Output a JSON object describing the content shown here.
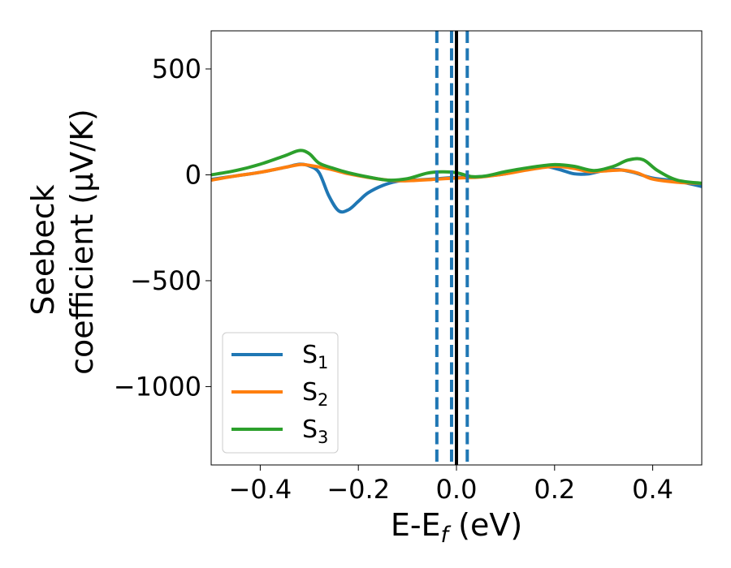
{
  "chart_data": {
    "type": "line",
    "xlabel": "E-E",
    "xlabel_sub": "f",
    "xlabel_unit": " (eV)",
    "ylabel_line1": "Seebeck",
    "ylabel_line2": "coefficient  (μV/K)",
    "xlim": [
      -0.5,
      0.5
    ],
    "ylim": [
      -1370,
      680
    ],
    "xticks": [
      -0.4,
      -0.2,
      0.0,
      0.2,
      0.4
    ],
    "xtick_labels": [
      "−0.4",
      "−0.2",
      "0.0",
      "0.2",
      "0.4"
    ],
    "yticks": [
      500,
      0,
      -500,
      -1000
    ],
    "ytick_labels": [
      "500",
      "0",
      "−500",
      "−1000"
    ],
    "grid": false,
    "legend_position": "lower-left",
    "vlines": [
      {
        "x": 0.0,
        "style": "solid",
        "color": "#000000"
      },
      {
        "x": -0.04,
        "style": "dashed",
        "color": "#1f77b4"
      },
      {
        "x": -0.01,
        "style": "dashed",
        "color": "#1f77b4"
      },
      {
        "x": 0.022,
        "style": "dashed",
        "color": "#1f77b4"
      }
    ],
    "series": [
      {
        "name": "S",
        "sub": "1",
        "color": "#1f77b4",
        "points": [
          [
            -0.5,
            -22
          ],
          [
            -0.45,
            -5
          ],
          [
            -0.4,
            12
          ],
          [
            -0.35,
            35
          ],
          [
            -0.32,
            50
          ],
          [
            -0.3,
            42
          ],
          [
            -0.28,
            10
          ],
          [
            -0.26,
            -100
          ],
          [
            -0.24,
            -170
          ],
          [
            -0.22,
            -165
          ],
          [
            -0.2,
            -125
          ],
          [
            -0.18,
            -85
          ],
          [
            -0.15,
            -50
          ],
          [
            -0.12,
            -30
          ],
          [
            -0.1,
            -27
          ],
          [
            -0.05,
            -20
          ],
          [
            0.0,
            -12
          ],
          [
            0.05,
            -8
          ],
          [
            0.1,
            5
          ],
          [
            0.15,
            30
          ],
          [
            0.18,
            40
          ],
          [
            0.21,
            25
          ],
          [
            0.24,
            5
          ],
          [
            0.27,
            5
          ],
          [
            0.3,
            20
          ],
          [
            0.33,
            25
          ],
          [
            0.36,
            12
          ],
          [
            0.4,
            -15
          ],
          [
            0.45,
            -30
          ],
          [
            0.5,
            -55
          ]
        ]
      },
      {
        "name": "S",
        "sub": "2",
        "color": "#ff7f0e",
        "points": [
          [
            -0.5,
            -25
          ],
          [
            -0.45,
            -5
          ],
          [
            -0.4,
            12
          ],
          [
            -0.35,
            35
          ],
          [
            -0.32,
            48
          ],
          [
            -0.3,
            45
          ],
          [
            -0.26,
            28
          ],
          [
            -0.22,
            5
          ],
          [
            -0.18,
            -12
          ],
          [
            -0.14,
            -25
          ],
          [
            -0.1,
            -28
          ],
          [
            -0.05,
            -22
          ],
          [
            0.0,
            -15
          ],
          [
            0.05,
            -10
          ],
          [
            0.1,
            5
          ],
          [
            0.15,
            25
          ],
          [
            0.2,
            40
          ],
          [
            0.24,
            30
          ],
          [
            0.27,
            15
          ],
          [
            0.3,
            18
          ],
          [
            0.34,
            22
          ],
          [
            0.37,
            8
          ],
          [
            0.4,
            -20
          ],
          [
            0.45,
            -35
          ],
          [
            0.5,
            -40
          ]
        ]
      },
      {
        "name": "S",
        "sub": "3",
        "color": "#2ca02c",
        "points": [
          [
            -0.5,
            0
          ],
          [
            -0.45,
            20
          ],
          [
            -0.4,
            50
          ],
          [
            -0.35,
            90
          ],
          [
            -0.32,
            115
          ],
          [
            -0.3,
            100
          ],
          [
            -0.28,
            55
          ],
          [
            -0.25,
            30
          ],
          [
            -0.22,
            10
          ],
          [
            -0.18,
            -10
          ],
          [
            -0.14,
            -25
          ],
          [
            -0.1,
            -18
          ],
          [
            -0.06,
            8
          ],
          [
            -0.03,
            14
          ],
          [
            0.0,
            10
          ],
          [
            0.03,
            -8
          ],
          [
            0.06,
            -5
          ],
          [
            0.1,
            15
          ],
          [
            0.15,
            35
          ],
          [
            0.2,
            48
          ],
          [
            0.24,
            40
          ],
          [
            0.28,
            20
          ],
          [
            0.32,
            40
          ],
          [
            0.35,
            70
          ],
          [
            0.38,
            72
          ],
          [
            0.41,
            20
          ],
          [
            0.45,
            -25
          ],
          [
            0.5,
            -40
          ]
        ]
      }
    ]
  }
}
